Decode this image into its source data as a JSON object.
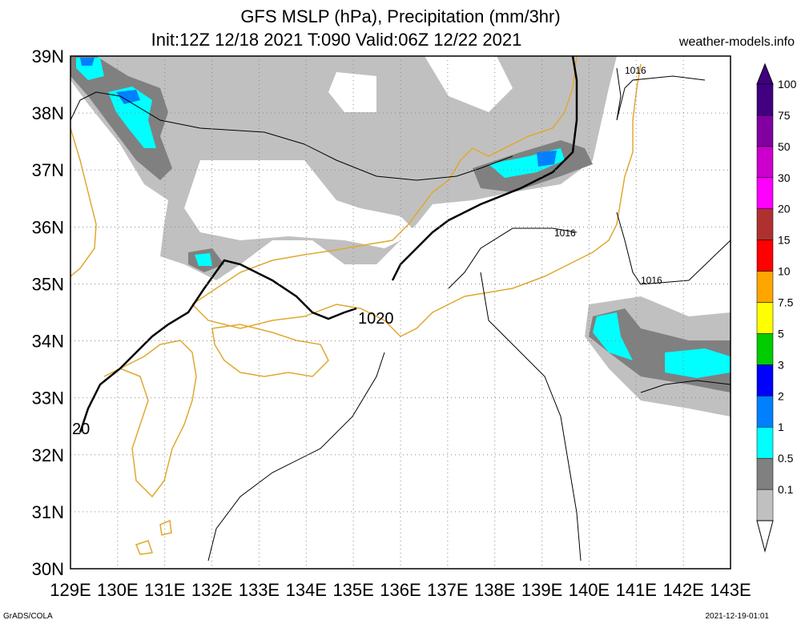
{
  "header": {
    "title_line1": "GFS MSLP (hPa), Precipitation (mm/3hr)",
    "title_line2": "Init:12Z 12/18 2021 T:090 Valid:06Z 12/22 2021",
    "site": "weather-models.info"
  },
  "footer": {
    "left": "GrADS/COLA",
    "right": "2021-12-19-01:01"
  },
  "map": {
    "lon_labels": [
      "129E",
      "130E",
      "131E",
      "132E",
      "133E",
      "134E",
      "135E",
      "136E",
      "137E",
      "138E",
      "139E",
      "140E",
      "141E",
      "142E",
      "143E"
    ],
    "lat_labels": [
      "39N",
      "38N",
      "37N",
      "36N",
      "35N",
      "34N",
      "33N",
      "32N",
      "31N",
      "30N"
    ],
    "lon_range": [
      129,
      143
    ],
    "lat_range": [
      30,
      39
    ],
    "grid": true,
    "coast_color": "#e0a830",
    "isobar_labels": [
      "1020",
      "20",
      "1016",
      "1016",
      "1016"
    ]
  },
  "legend": {
    "levels": [
      {
        "label": "0.1",
        "color": "#c0c0c0"
      },
      {
        "label": "0.5",
        "color": "#808080"
      },
      {
        "label": "1",
        "color": "#00ffff"
      },
      {
        "label": "2",
        "color": "#0080ff"
      },
      {
        "label": "3",
        "color": "#0000ff"
      },
      {
        "label": "5",
        "color": "#00cc00"
      },
      {
        "label": "7.5",
        "color": "#ffff00"
      },
      {
        "label": "10",
        "color": "#ffa500"
      },
      {
        "label": "15",
        "color": "#ff0000"
      },
      {
        "label": "20",
        "color": "#b03030"
      },
      {
        "label": "30",
        "color": "#ff00ff"
      },
      {
        "label": "50",
        "color": "#cc00cc"
      },
      {
        "label": "75",
        "color": "#8000a0"
      },
      {
        "label": "100",
        "color": "#400080"
      }
    ]
  }
}
